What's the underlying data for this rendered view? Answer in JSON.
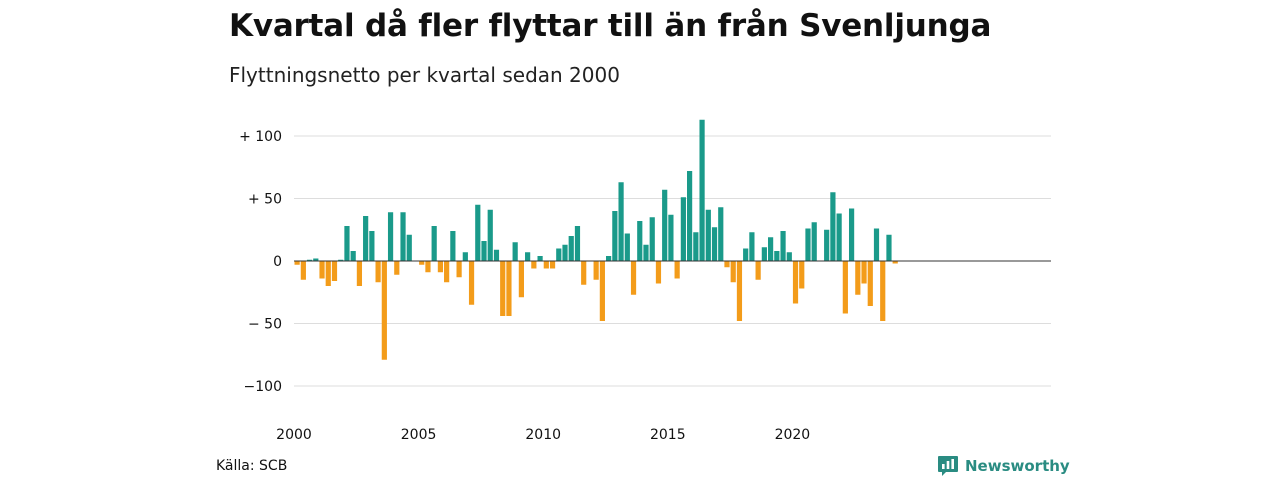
{
  "title": "Kvartal då fler flyttar till än från Svenljunga",
  "subtitle": "Flyttningsnetto per kvartal sedan 2000",
  "source": "Källa: SCB",
  "brand": {
    "name": "Newsworthy",
    "icon": "chart-bubble-icon"
  },
  "colors": {
    "positive": "#1a9a8a",
    "negative": "#f39c1a",
    "grid": "#dddddd",
    "zero": "#333333"
  },
  "chart_data": {
    "type": "bar",
    "x_start": "2000-Q1",
    "x_ticks": [
      2000,
      2005,
      2010,
      2015,
      2020
    ],
    "y_ticks": [
      100,
      50,
      0,
      -50,
      -100
    ],
    "y_tick_labels": [
      "+ 100",
      "+  50",
      "0",
      "− 50",
      "−100"
    ],
    "ylim": [
      -110,
      115
    ],
    "grid": true,
    "values": [
      -3,
      -15,
      1,
      2,
      -14,
      -20,
      -16,
      1,
      28,
      8,
      -20,
      36,
      24,
      -17,
      -79,
      39,
      -11,
      39,
      21,
      0,
      -3,
      -9,
      28,
      -9,
      -17,
      24,
      -13,
      7,
      -35,
      45,
      16,
      41,
      9,
      -44,
      -44,
      15,
      -29,
      7,
      -6,
      4,
      -6,
      -6,
      10,
      13,
      20,
      28,
      -19,
      0,
      -15,
      -48,
      4,
      40,
      63,
      22,
      -27,
      32,
      13,
      35,
      -18,
      57,
      37,
      -14,
      51,
      72,
      23,
      113,
      41,
      27,
      43,
      -5,
      -17,
      -48,
      10,
      23,
      -15,
      11,
      19,
      8,
      24,
      7,
      -34,
      -22,
      26,
      31,
      0,
      25,
      55,
      38,
      -42,
      42,
      -27,
      -18,
      -36,
      26,
      -48,
      21,
      -2
    ]
  }
}
